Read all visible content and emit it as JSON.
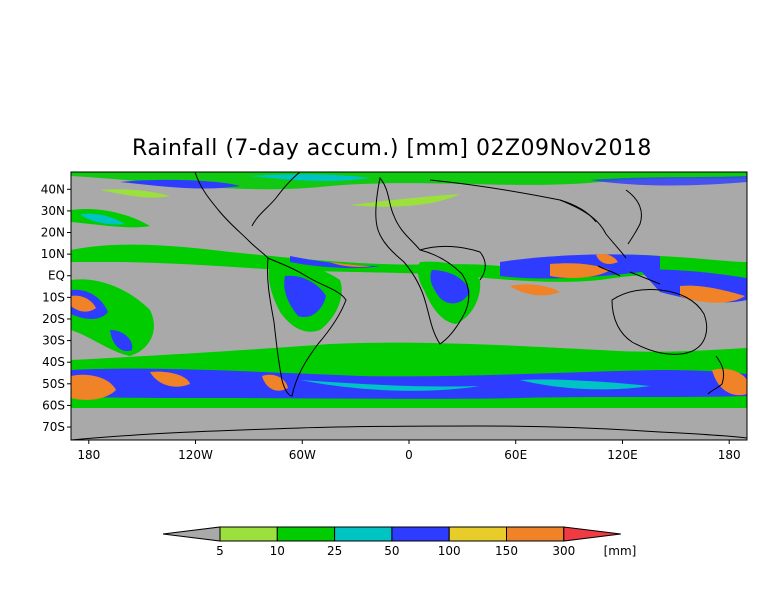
{
  "title": "Rainfall (7-day accum.) [mm] 02Z09Nov2018",
  "map": {
    "lon_range": [
      -190,
      190
    ],
    "lat_range": [
      -76,
      48
    ],
    "lon_ticks": [
      {
        "label": "180",
        "lon": -180
      },
      {
        "label": "120W",
        "lon": -120
      },
      {
        "label": "60W",
        "lon": -60
      },
      {
        "label": "0",
        "lon": 0
      },
      {
        "label": "60E",
        "lon": 60
      },
      {
        "label": "120E",
        "lon": 120
      },
      {
        "label": "180",
        "lon": 180
      }
    ],
    "lat_ticks": [
      {
        "label": "40N",
        "lat": 40
      },
      {
        "label": "30N",
        "lat": 30
      },
      {
        "label": "20N",
        "lat": 20
      },
      {
        "label": "10N",
        "lat": 10
      },
      {
        "label": "EQ",
        "lat": 0
      },
      {
        "label": "10S",
        "lat": -10
      },
      {
        "label": "20S",
        "lat": -20
      },
      {
        "label": "30S",
        "lat": -30
      },
      {
        "label": "40S",
        "lat": -40
      },
      {
        "label": "50S",
        "lat": -50
      },
      {
        "label": "60S",
        "lat": -60
      },
      {
        "label": "70S",
        "lat": -70
      }
    ],
    "background_color": "#a9a9a9"
  },
  "colorbar": {
    "unit": "[mm]",
    "levels": [
      "5",
      "10",
      "25",
      "50",
      "100",
      "150",
      "300"
    ],
    "colors": [
      "#a9a9a9",
      "#9be03c",
      "#00cc00",
      "#00c3c3",
      "#2e3cff",
      "#e8cc2a",
      "#f08228",
      "#f03a44"
    ]
  }
}
